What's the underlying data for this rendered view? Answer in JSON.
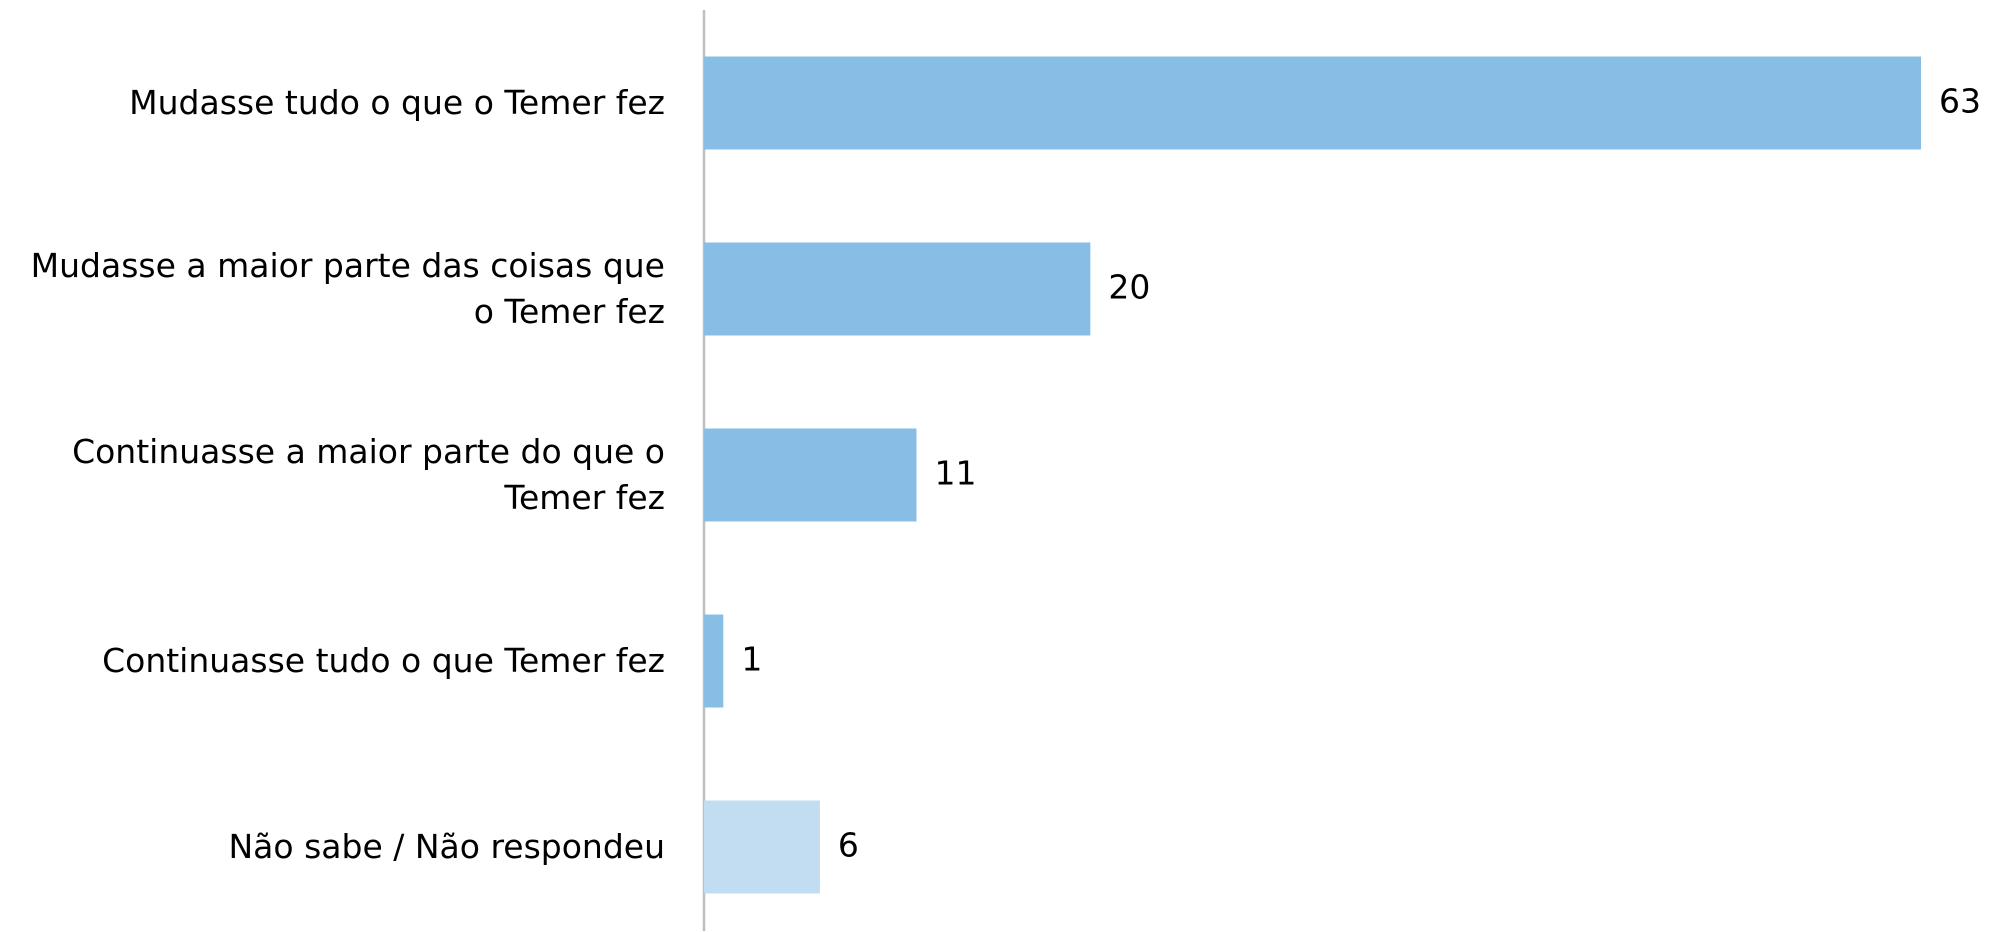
{
  "chart_data": {
    "type": "barh",
    "categories": [
      "Mudasse tudo o que o Temer fez",
      "Mudasse a maior parte das coisas que o Temer fez",
      "Continuasse a maior parte do que o Temer fez",
      "Continuasse tudo o que Temer fez",
      "Não sabe / Não respondeu"
    ],
    "values": [
      63,
      20,
      11,
      1,
      6
    ],
    "colors": [
      "#88bde6",
      "#88bde6",
      "#88bde6",
      "#88bde6",
      "#c2dcf2"
    ]
  }
}
